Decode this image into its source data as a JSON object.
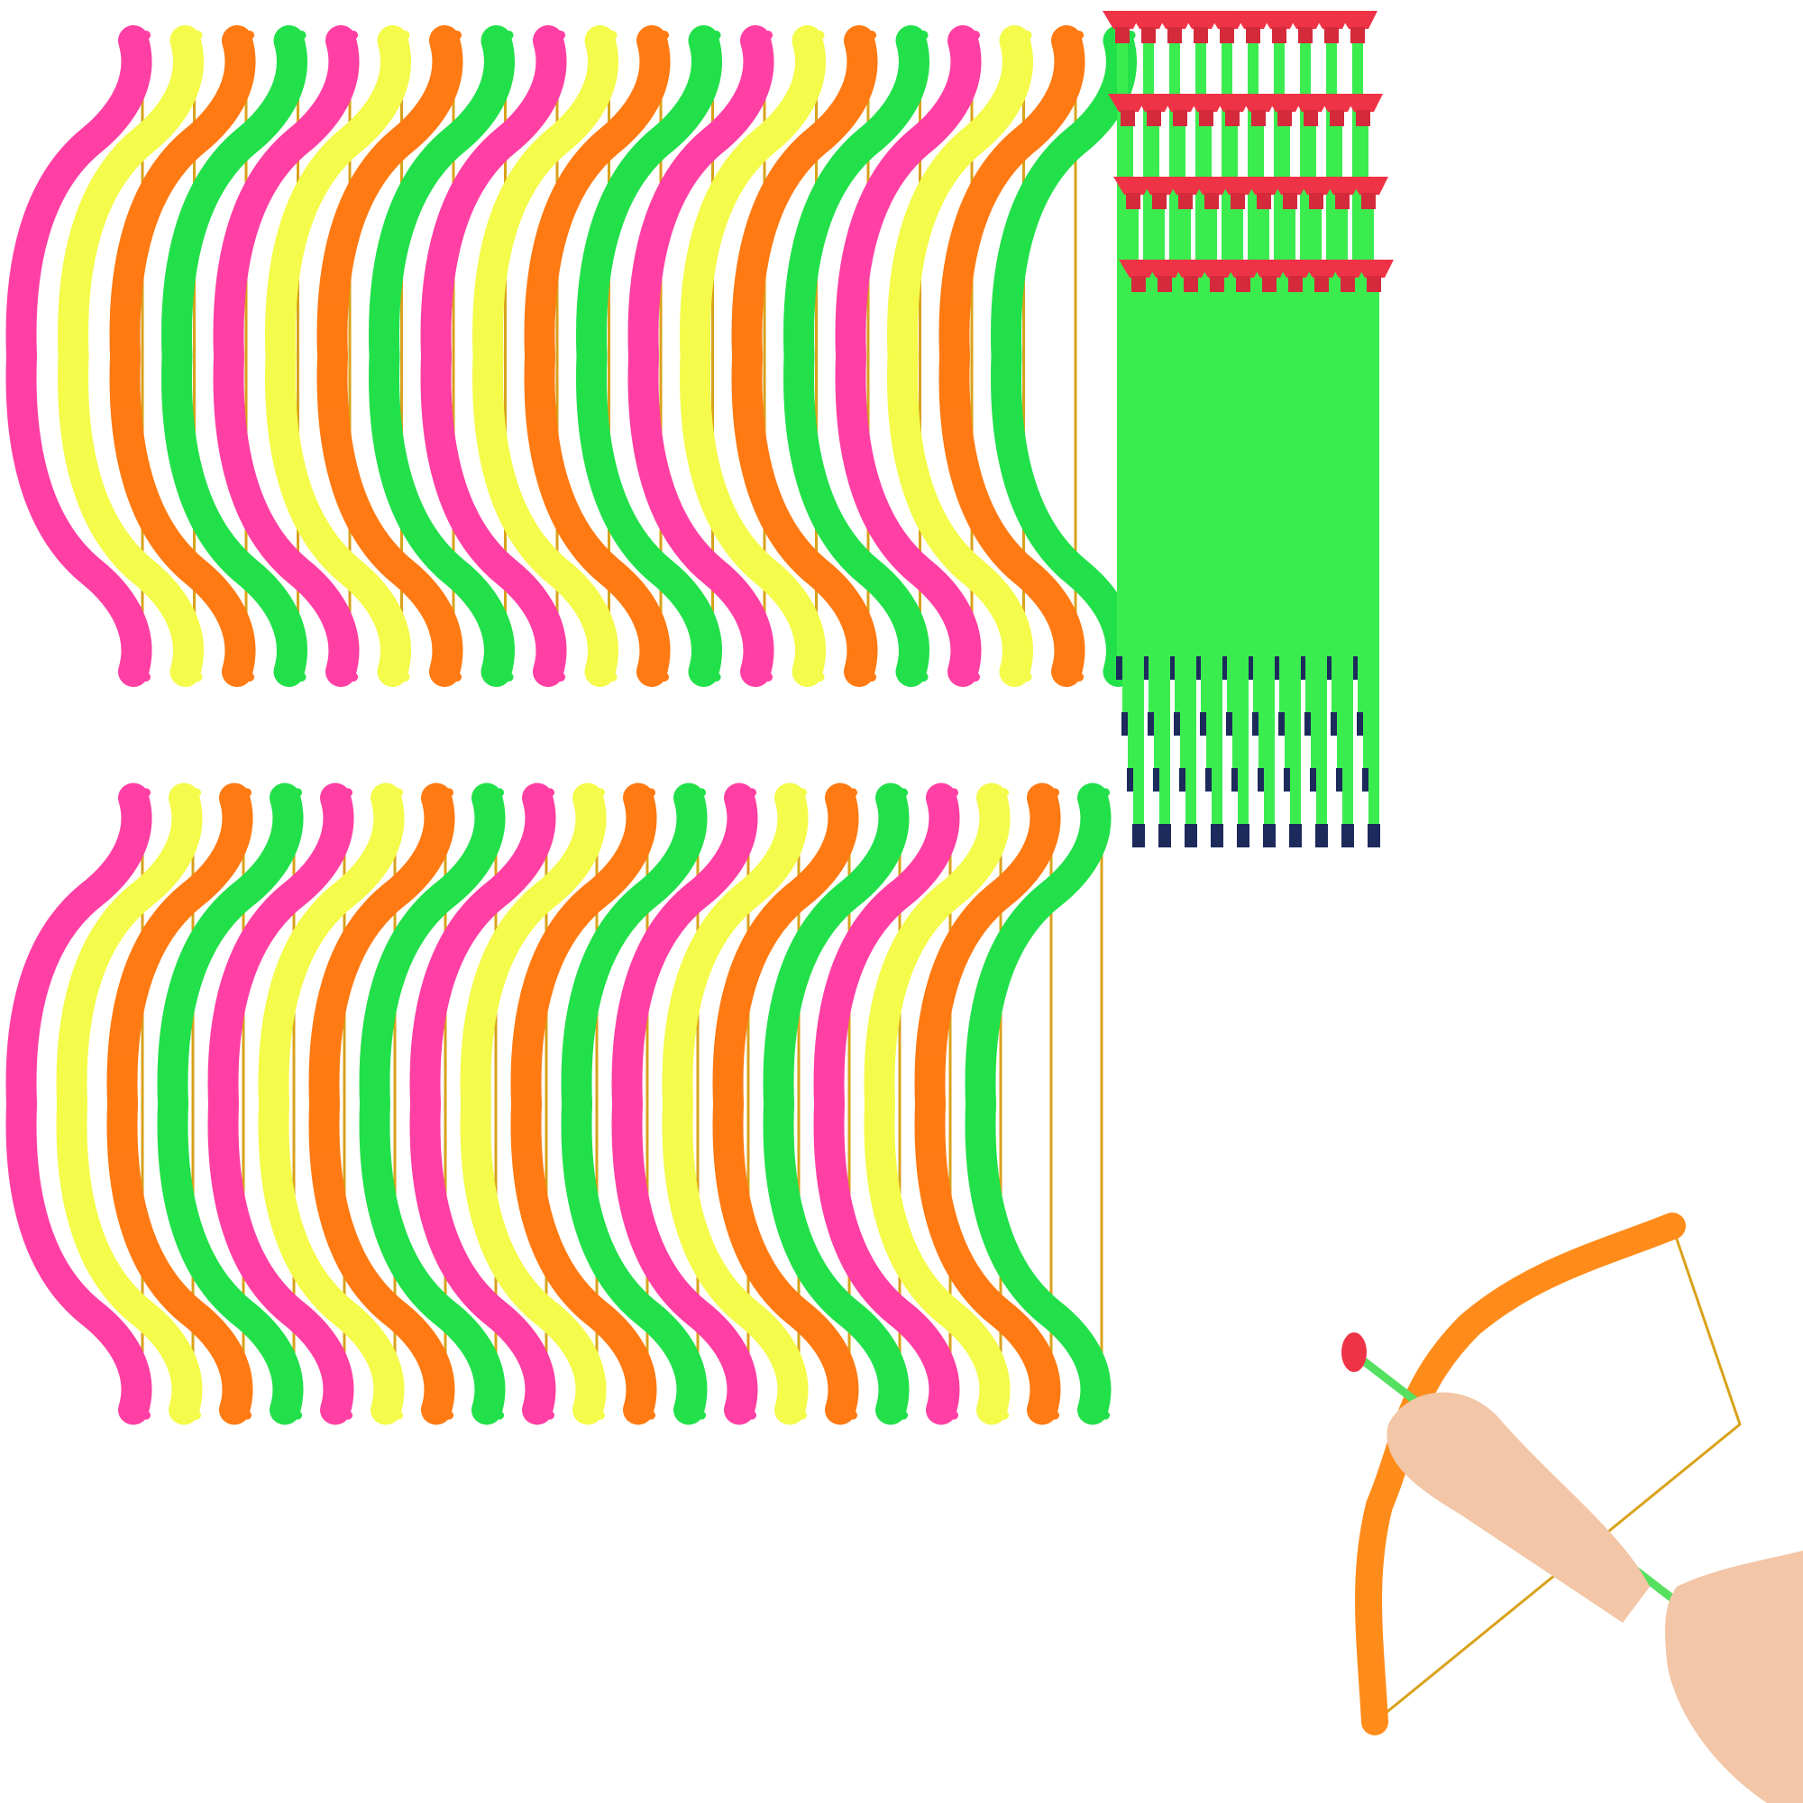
{
  "scene": {
    "bow_colors": [
      "#ff3fa4",
      "#f4fb4a",
      "#ff7a12",
      "#22e04a"
    ],
    "string_color": "#d9a21b",
    "arrow_shaft_color": "#3bec4f",
    "arrow_cup_color": "#ee3346",
    "arrow_nock_color": "#1d2a5c",
    "skin_color": "#f2c6a6",
    "demo_bow_color": "#ff8c1a",
    "top_row_bow_count": 20,
    "bottom_row_bow_count": 20,
    "arrow_count": 40
  }
}
